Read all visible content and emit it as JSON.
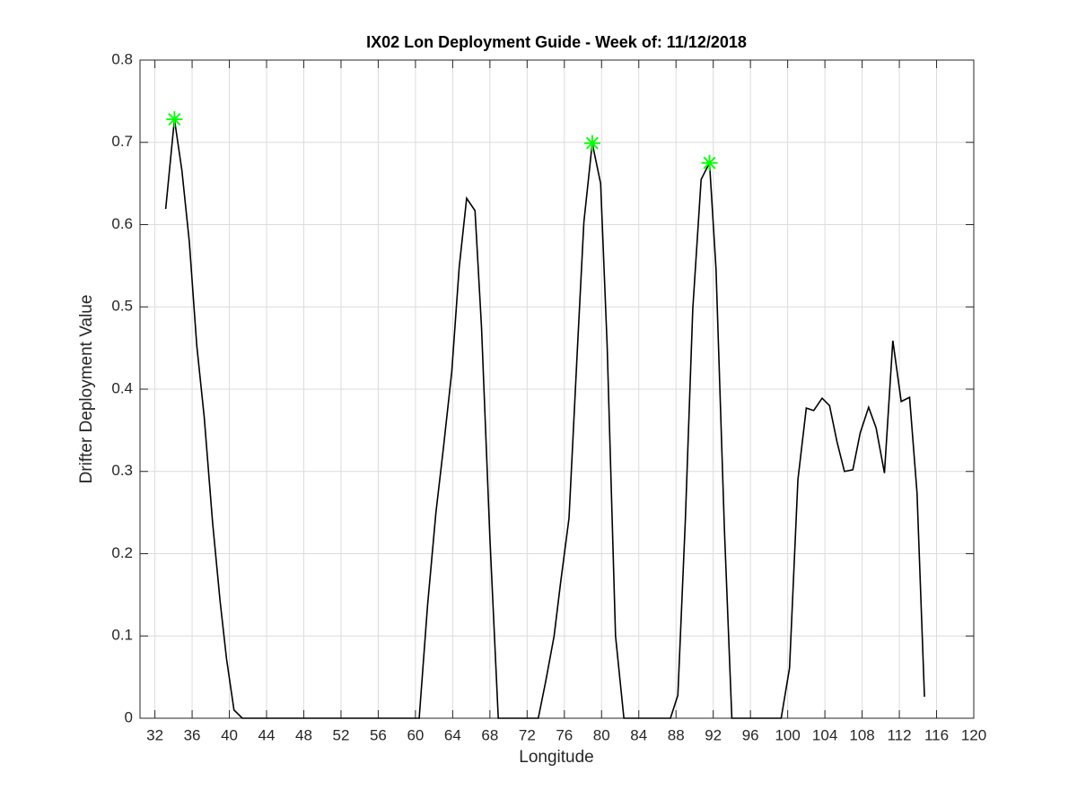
{
  "chart_data": {
    "type": "line",
    "title": "IX02 Lon Deployment Guide - Week of: 11/12/2018",
    "x_label": "Longitude",
    "y_label": "Drifter Deployment Value",
    "xlim": [
      30.4,
      120
    ],
    "ylim": [
      0,
      0.8
    ],
    "xticks": [
      32,
      36,
      40,
      44,
      48,
      52,
      56,
      60,
      64,
      68,
      72,
      76,
      80,
      84,
      88,
      92,
      96,
      100,
      104,
      108,
      112,
      116,
      120
    ],
    "yticks": [
      0,
      0.1,
      0.2,
      0.3,
      0.4,
      0.5,
      0.6,
      0.7,
      0.8
    ],
    "grid": true,
    "series": [
      {
        "color": "#000000",
        "marker": "none",
        "x": [
          33.16,
          34.1,
          34.9,
          35.7,
          36.5,
          37.3,
          38.2,
          39,
          39.7,
          40.5,
          41.4,
          60.4,
          61.3,
          62.2,
          63,
          63.9,
          64.7,
          65.5,
          66.4,
          67.1,
          68,
          68.9,
          73.2,
          74,
          74.9,
          75.6,
          76.5,
          77.4,
          78.1,
          79,
          79.9,
          80.6,
          81.5,
          82.4,
          87.4,
          88.2,
          89,
          89.8,
          90.7,
          91.6,
          92.3,
          93.2,
          94,
          99.3,
          100.2,
          101.1,
          102,
          102.8,
          103.7,
          104.5,
          105.3,
          106.1,
          107,
          107.8,
          108.7,
          109.5,
          110.4,
          111.3,
          112.2,
          113.1,
          113.9,
          114.7
        ],
        "values": [
          0.619,
          0.728,
          0.666,
          0.579,
          0.453,
          0.366,
          0.238,
          0.143,
          0.072,
          0.01,
          0,
          0,
          0.137,
          0.25,
          0.328,
          0.421,
          0.548,
          0.632,
          0.617,
          0.475,
          0.219,
          0,
          0,
          0.045,
          0.1,
          0.165,
          0.243,
          0.448,
          0.603,
          0.699,
          0.65,
          0.453,
          0.1,
          0,
          0,
          0.028,
          0.24,
          0.497,
          0.655,
          0.675,
          0.546,
          0.23,
          0,
          0,
          0.061,
          0.29,
          0.377,
          0.374,
          0.389,
          0.38,
          0.336,
          0.3,
          0.302,
          0.347,
          0.378,
          0.353,
          0.298,
          0.459,
          0.385,
          0.39,
          0.274,
          0.026
        ]
      },
      {
        "color": "#00ff00",
        "marker": "star",
        "line": false,
        "x": [
          34.1,
          79,
          91.6
        ],
        "values": [
          0.728,
          0.699,
          0.675
        ]
      }
    ]
  }
}
